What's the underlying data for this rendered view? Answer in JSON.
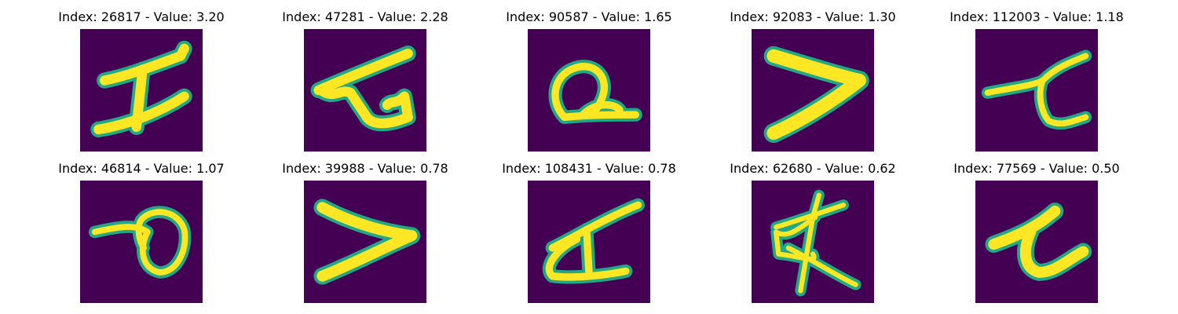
{
  "colors": {
    "background": "#440154",
    "stroke": "#fde725",
    "stroke_edge": "#22a884",
    "page": "#ffffff"
  },
  "panels": [
    {
      "title": "Index: 26817 - Value: 3.20"
    },
    {
      "title": "Index: 47281 - Value: 2.28"
    },
    {
      "title": "Index: 90587 - Value: 1.65"
    },
    {
      "title": "Index: 92083 - Value: 1.30"
    },
    {
      "title": "Index: 112003 - Value: 1.18"
    },
    {
      "title": "Index: 46814 - Value: 1.07"
    },
    {
      "title": "Index: 39988 - Value: 0.78"
    },
    {
      "title": "Index: 108431 - Value: 0.78"
    },
    {
      "title": "Index: 62680 - Value: 0.62"
    },
    {
      "title": "Index: 77569 - Value: 0.50"
    }
  ]
}
